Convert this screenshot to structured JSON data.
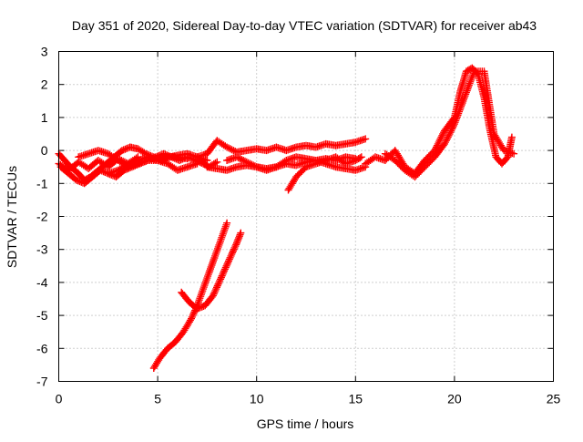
{
  "chart_data": {
    "type": "scatter",
    "title": "Day 351 of 2020, Sidereal Day-to-day VTEC variation (SDTVAR) for receiver ab43",
    "xlabel": "GPS time / hours",
    "ylabel": "SDTVAR / TECUs",
    "xlim": [
      0,
      25
    ],
    "ylim": [
      -7,
      3
    ],
    "xticks": [
      0,
      5,
      10,
      15,
      20,
      25
    ],
    "yticks": [
      -7,
      -6,
      -5,
      -4,
      -3,
      -2,
      -1,
      0,
      1,
      2,
      3
    ],
    "grid": true,
    "marker": "+",
    "series": [
      {
        "name": "SDTVAR",
        "color": "#ff0000",
        "segments": [
          {
            "x": [
              0.0,
              0.5,
              1.0,
              1.5,
              2.0,
              2.5,
              3.0,
              3.5,
              4.0
            ],
            "y": [
              -0.4,
              -0.6,
              -0.35,
              -0.55,
              -0.3,
              -0.5,
              -0.25,
              -0.4,
              -0.2
            ]
          },
          {
            "x": [
              0.0,
              0.3,
              0.6,
              1.0,
              1.3,
              1.6,
              2.0,
              2.4,
              2.8,
              3.2,
              3.6,
              4.0,
              4.4,
              4.8,
              5.2,
              5.6,
              6.0,
              6.5,
              7.0,
              7.5
            ],
            "y": [
              -0.1,
              -0.3,
              -0.5,
              -0.7,
              -0.9,
              -0.8,
              -0.6,
              -0.4,
              -0.2,
              0.0,
              0.1,
              0.05,
              -0.1,
              -0.2,
              -0.3,
              -0.2,
              -0.15,
              -0.1,
              -0.2,
              -0.3
            ]
          },
          {
            "x": [
              0.1,
              0.5,
              0.9,
              1.3,
              1.7,
              2.1,
              2.5,
              2.9,
              3.3,
              3.7,
              4.1,
              4.5,
              4.9,
              5.3,
              5.7,
              6.1,
              6.5,
              6.9,
              7.3,
              7.6,
              8.0
            ],
            "y": [
              -0.5,
              -0.7,
              -0.9,
              -1.0,
              -0.8,
              -0.6,
              -0.7,
              -0.8,
              -0.6,
              -0.5,
              -0.4,
              -0.3,
              -0.2,
              -0.1,
              -0.2,
              -0.3,
              -0.2,
              -0.3,
              -0.4,
              -0.5,
              -0.35
            ]
          },
          {
            "x": [
              1.0,
              1.5,
              2.0,
              2.5,
              3.0,
              3.5,
              4.0,
              4.5,
              5.0,
              5.5,
              6.0,
              6.5
            ],
            "y": [
              -0.2,
              -0.1,
              0.0,
              -0.1,
              -0.3,
              -0.5,
              -0.4,
              -0.3,
              -0.3,
              -0.2,
              -0.2,
              -0.25
            ]
          },
          {
            "x": [
              2.5,
              3.0,
              3.5,
              4.0,
              4.5,
              5.0,
              5.5,
              6.0,
              6.5,
              7.0
            ],
            "y": [
              -0.7,
              -0.6,
              -0.4,
              -0.3,
              -0.2,
              -0.3,
              -0.4,
              -0.6,
              -0.5,
              -0.4
            ]
          },
          {
            "x": [
              7.0,
              7.5,
              8.0,
              8.5,
              9.0,
              9.5,
              10.0,
              10.5,
              11.0,
              11.5,
              12.0,
              12.5,
              13.0,
              13.5,
              14.0,
              14.5,
              15.0,
              15.5
            ],
            "y": [
              -0.2,
              -0.1,
              0.3,
              0.1,
              -0.05,
              0.0,
              0.05,
              0.0,
              0.1,
              0.0,
              0.1,
              0.15,
              0.1,
              0.2,
              0.15,
              0.2,
              0.25,
              0.35
            ]
          },
          {
            "x": [
              7.5,
              8.0,
              8.5,
              9.0,
              9.5,
              10.0,
              10.5,
              11.0,
              11.5,
              12.0,
              12.5,
              13.0,
              13.5,
              14.0,
              14.5,
              15.0
            ],
            "y": [
              -0.5,
              -0.55,
              -0.6,
              -0.5,
              -0.45,
              -0.5,
              -0.55,
              -0.5,
              -0.4,
              -0.45,
              -0.35,
              -0.3,
              -0.25,
              -0.3,
              -0.2,
              -0.25
            ]
          },
          {
            "x": [
              8.5,
              9.0,
              9.5,
              10.0,
              10.5,
              11.0,
              11.5,
              12.0,
              12.5,
              13.0,
              13.5,
              14.0,
              14.5,
              15.0,
              15.5
            ],
            "y": [
              -0.3,
              -0.2,
              -0.35,
              -0.5,
              -0.6,
              -0.5,
              -0.3,
              -0.2,
              -0.25,
              -0.3,
              -0.4,
              -0.5,
              -0.55,
              -0.6,
              -0.5
            ]
          },
          {
            "x": [
              11.6,
              12.0,
              12.5,
              13.0,
              13.5,
              14.0,
              14.5,
              15.0,
              15.3
            ],
            "y": [
              -1.2,
              -0.8,
              -0.5,
              -0.4,
              -0.3,
              -0.2,
              -0.4,
              -0.3,
              -0.2
            ]
          },
          {
            "x": [
              15.5,
              16.0,
              16.5,
              17.0,
              17.5,
              18.0,
              18.5,
              19.0,
              19.5,
              20.0,
              20.3,
              20.6,
              20.9,
              21.2,
              21.5,
              21.8,
              22.1,
              22.4,
              22.7,
              22.9
            ],
            "y": [
              -0.4,
              -0.2,
              -0.3,
              0.0,
              -0.5,
              -0.7,
              -0.3,
              0.0,
              0.6,
              1.0,
              1.8,
              2.4,
              2.5,
              2.3,
              1.6,
              0.6,
              -0.2,
              -0.4,
              -0.2,
              0.4
            ]
          },
          {
            "x": [
              16.5,
              17.0,
              17.5,
              18.0,
              18.5,
              19.0,
              19.5,
              20.0,
              20.5,
              21.0,
              21.5,
              22.0,
              22.5,
              23.0
            ],
            "y": [
              -0.1,
              -0.3,
              -0.6,
              -0.8,
              -0.5,
              -0.2,
              0.2,
              0.8,
              1.6,
              2.4,
              2.4,
              0.5,
              0.0,
              -0.1
            ]
          },
          {
            "x": [
              4.8,
              5.1,
              5.5,
              5.9,
              6.3,
              6.7,
              7.0,
              7.3,
              7.6,
              7.9,
              8.2,
              8.5
            ],
            "y": [
              -6.6,
              -6.3,
              -6.0,
              -5.8,
              -5.5,
              -5.1,
              -4.7,
              -4.2,
              -3.7,
              -3.2,
              -2.7,
              -2.2
            ]
          },
          {
            "x": [
              6.2,
              6.6,
              7.0,
              7.4,
              7.8,
              8.1,
              8.4,
              8.7,
              9.0,
              9.2
            ],
            "y": [
              -4.3,
              -4.6,
              -4.8,
              -4.7,
              -4.4,
              -4.0,
              -3.6,
              -3.2,
              -2.8,
              -2.5
            ]
          }
        ]
      }
    ]
  }
}
